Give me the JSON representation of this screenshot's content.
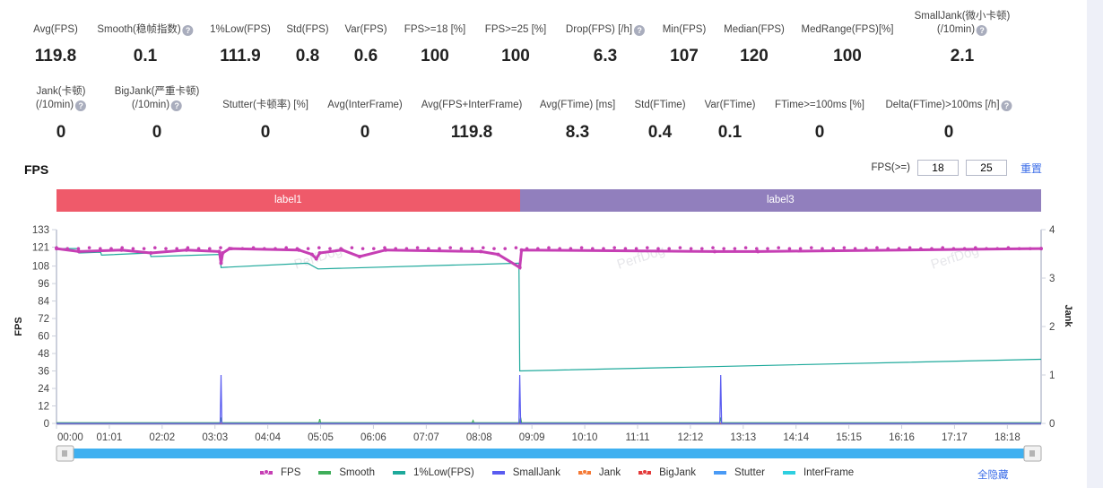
{
  "stats_row1": [
    {
      "label": "Avg(FPS)",
      "value": "119.8",
      "help": false
    },
    {
      "label": "Smooth(稳帧指数)",
      "value": "0.1",
      "help": true
    },
    {
      "label": "1%Low(FPS)",
      "value": "111.9",
      "help": false
    },
    {
      "label": "Std(FPS)",
      "value": "0.8",
      "help": false
    },
    {
      "label": "Var(FPS)",
      "value": "0.6",
      "help": false
    },
    {
      "label": "FPS>=18 [%]",
      "value": "100",
      "help": false
    },
    {
      "label": "FPS>=25 [%]",
      "value": "100",
      "help": false
    },
    {
      "label": "Drop(FPS) [/h]",
      "value": "6.3",
      "help": true
    },
    {
      "label": "Min(FPS)",
      "value": "107",
      "help": false
    },
    {
      "label": "Median(FPS)",
      "value": "120",
      "help": false
    },
    {
      "label": "MedRange(FPS)[%]",
      "value": "100",
      "help": false
    },
    {
      "label": "SmallJank(微小卡顿)",
      "label2": "(/10min)",
      "value": "2.1",
      "help": true
    }
  ],
  "stats_row2": [
    {
      "label": "Jank(卡顿)",
      "label2": "(/10min)",
      "value": "0",
      "help": true
    },
    {
      "label": "BigJank(严重卡顿)",
      "label2": "(/10min)",
      "value": "0",
      "help": true
    },
    {
      "label": "Stutter(卡顿率) [%]",
      "value": "0",
      "help": false
    },
    {
      "label": "Avg(InterFrame)",
      "value": "0",
      "help": false
    },
    {
      "label": "Avg(FPS+InterFrame)",
      "value": "119.8",
      "help": false
    },
    {
      "label": "Avg(FTime) [ms]",
      "value": "8.3",
      "help": false
    },
    {
      "label": "Std(FTime)",
      "value": "0.4",
      "help": false
    },
    {
      "label": "Var(FTime)",
      "value": "0.1",
      "help": false
    },
    {
      "label": "FTime>=100ms [%]",
      "value": "0",
      "help": false
    },
    {
      "label": "Delta(FTime)>100ms [/h]",
      "value": "0",
      "help": true
    }
  ],
  "section_title": "FPS",
  "fps_threshold": {
    "label": "FPS(>=)",
    "value1": "18",
    "value2": "25",
    "reset_label": "重置"
  },
  "labels": [
    {
      "name": "label1",
      "color": "#ef5a6a",
      "from": "00:00",
      "to": "08:55"
    },
    {
      "name": "label3",
      "color": "#917fbd",
      "from": "08:55",
      "to": "18:57"
    }
  ],
  "hide_all_label": "全隐藏",
  "watermark": "PerfDog",
  "chart_data": {
    "type": "line",
    "ylabel_left": "FPS",
    "ylabel_right": "Jank",
    "yticks_left": [
      0,
      12,
      24,
      36,
      48,
      60,
      72,
      84,
      96,
      108,
      121,
      133
    ],
    "ylim_left": [
      0,
      133
    ],
    "yticks_right": [
      0,
      1,
      2,
      3,
      4
    ],
    "ylim_right": [
      0,
      4
    ],
    "xticks": [
      "00:00",
      "01:01",
      "02:02",
      "03:03",
      "04:04",
      "05:05",
      "06:06",
      "07:07",
      "08:08",
      "09:09",
      "10:10",
      "11:11",
      "12:12",
      "13:13",
      "14:14",
      "15:15",
      "16:16",
      "17:17",
      "18:18"
    ],
    "xlim": [
      "00:00",
      "18:57"
    ],
    "series": [
      {
        "name": "FPS",
        "color": "#c63fb4",
        "axis": "left",
        "baseline": 120,
        "points": [
          [
            "00:00",
            120
          ],
          [
            "00:26",
            118
          ],
          [
            "01:15",
            119
          ],
          [
            "01:49",
            117
          ],
          [
            "02:30",
            119
          ],
          [
            "03:08",
            118
          ],
          [
            "03:10",
            110
          ],
          [
            "03:12",
            117
          ],
          [
            "03:20",
            120
          ],
          [
            "04:40",
            119
          ],
          [
            "04:55",
            116
          ],
          [
            "05:00",
            113
          ],
          [
            "05:04",
            117
          ],
          [
            "05:30",
            119
          ],
          [
            "05:50",
            114.5
          ],
          [
            "06:20",
            119
          ],
          [
            "08:10",
            118
          ],
          [
            "08:30",
            116
          ],
          [
            "08:55",
            107
          ],
          [
            "08:57",
            119
          ],
          [
            "12:40",
            118
          ],
          [
            "13:30",
            118
          ],
          [
            "18:57",
            120
          ]
        ]
      },
      {
        "name": "Smooth",
        "color": "#3fae5a",
        "axis": "left",
        "points": [
          [
            "00:00",
            0.5
          ],
          [
            "03:09",
            0.5
          ],
          [
            "03:10",
            4
          ],
          [
            "03:11",
            0.5
          ],
          [
            "05:03",
            0.5
          ],
          [
            "05:04",
            3
          ],
          [
            "05:05",
            0.5
          ],
          [
            "08:00",
            0.5
          ],
          [
            "08:01",
            2
          ],
          [
            "08:02",
            0.5
          ],
          [
            "08:55",
            0.5
          ],
          [
            "08:56",
            4
          ],
          [
            "08:57",
            0.5
          ],
          [
            "12:46",
            0.5
          ],
          [
            "12:47",
            4
          ],
          [
            "12:48",
            0.5
          ],
          [
            "18:57",
            0.5
          ]
        ]
      },
      {
        "name": "1%Low(FPS)",
        "color": "#1ea99b",
        "axis": "left",
        "points": [
          [
            "00:00",
            120
          ],
          [
            "00:25",
            120
          ],
          [
            "00:26",
            117
          ],
          [
            "00:51",
            117.5
          ],
          [
            "00:52",
            115.5
          ],
          [
            "01:48",
            117
          ],
          [
            "01:49",
            114.5
          ],
          [
            "03:09",
            116
          ],
          [
            "03:10",
            107
          ],
          [
            "04:50",
            110
          ],
          [
            "05:02",
            106
          ],
          [
            "08:54",
            110
          ],
          [
            "08:55",
            36
          ],
          [
            "18:57",
            44
          ]
        ]
      },
      {
        "name": "SmallJank",
        "color": "#5a5cf0",
        "axis": "right",
        "points": [
          [
            "00:00",
            0
          ],
          [
            "03:09",
            0
          ],
          [
            "03:10",
            1
          ],
          [
            "03:11",
            0
          ],
          [
            "08:54",
            0
          ],
          [
            "08:55",
            1
          ],
          [
            "08:56",
            0
          ],
          [
            "12:46",
            0
          ],
          [
            "12:47",
            1
          ],
          [
            "12:48",
            0
          ],
          [
            "18:57",
            0
          ]
        ]
      },
      {
        "name": "Jank",
        "color": "#f57a36",
        "axis": "right",
        "points": [
          [
            "00:00",
            0
          ],
          [
            "18:57",
            0
          ]
        ]
      },
      {
        "name": "BigJank",
        "color": "#e43a3a",
        "axis": "right",
        "points": [
          [
            "00:00",
            0
          ],
          [
            "18:57",
            0
          ]
        ]
      },
      {
        "name": "Stutter",
        "color": "#4a9af5",
        "axis": "left",
        "points": [
          [
            "00:00",
            0
          ],
          [
            "18:57",
            0
          ]
        ]
      },
      {
        "name": "InterFrame",
        "color": "#2ecfe0",
        "axis": "left",
        "points": [
          [
            "00:00",
            0
          ],
          [
            "18:57",
            0
          ]
        ]
      }
    ]
  }
}
